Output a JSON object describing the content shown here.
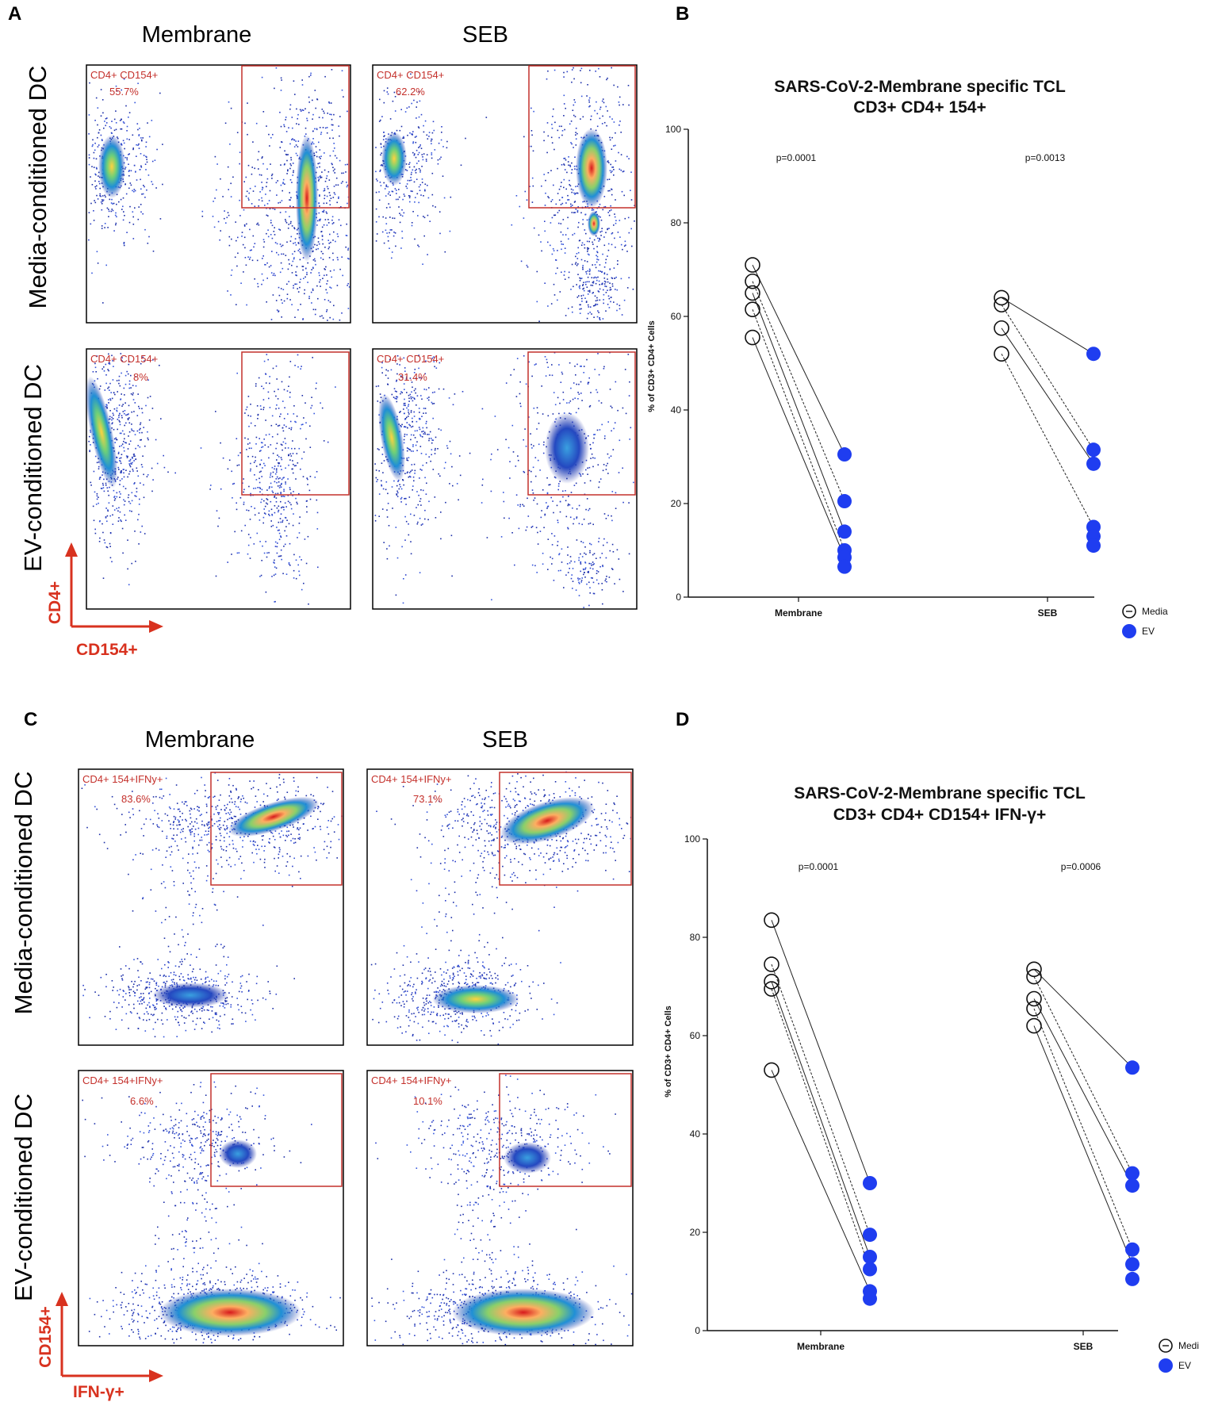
{
  "panels": [
    {
      "label": "A",
      "col_titles": [
        "Membrane",
        "SEB"
      ],
      "row_titles": [
        "Media-conditioned DC",
        "EV-conditioned DC"
      ],
      "y_marker": "CD4+",
      "x_marker": "CD154+",
      "gates": [
        {
          "name": "CD4+ CD154+",
          "value": "55.7%"
        },
        {
          "name": "CD4+ CD154+",
          "value": "62.2%"
        },
        {
          "name": "CD4+ CD154+",
          "value": "8%"
        },
        {
          "name": "CD4+ CD154+",
          "value": "31.4%"
        }
      ]
    },
    {
      "label": "C",
      "col_titles": [
        "Membrane",
        "SEB"
      ],
      "row_titles": [
        "Media-conditioned DC",
        "EV-conditioned DC"
      ],
      "y_marker": "CD154+",
      "x_marker": "IFN-γ+",
      "gates": [
        {
          "name": "CD4+ 154+IFNy+",
          "value": "83.6%"
        },
        {
          "name": "CD4+ 154+IFNy+",
          "value": "73.1%"
        },
        {
          "name": "CD4+ 154+IFNy+",
          "value": "6.6%"
        },
        {
          "name": "CD4+ 154+IFNy+",
          "value": "10.1%"
        }
      ]
    }
  ],
  "chart_data": [
    {
      "panel": "B",
      "type": "scatter",
      "title": "SARS-CoV-2-Membrane specific TCL",
      "subtitle": "CD3+ CD4+ 154+",
      "ylabel": "% of CD3+ CD4+ Cells",
      "ylim": [
        0,
        100
      ],
      "yticks": [
        0,
        20,
        40,
        60,
        80,
        100
      ],
      "categories": [
        "Membrane",
        "SEB"
      ],
      "pvalues": [
        "p=0.0001",
        "p=0.0013"
      ],
      "legend": [
        "Media",
        "EV"
      ],
      "colors": {
        "ev": "#1f3df0",
        "media": "#111111"
      },
      "pairs": [
        {
          "category": "Membrane",
          "media": [
            71,
            67.5,
            65,
            61.5,
            55.5
          ],
          "ev": [
            30.5,
            20.5,
            14,
            10,
            8.5,
            6.5
          ]
        },
        {
          "category": "SEB",
          "media": [
            64,
            62.5,
            57.5,
            52
          ],
          "ev": [
            52,
            31.5,
            28.5,
            15,
            13,
            11
          ]
        }
      ]
    },
    {
      "panel": "D",
      "type": "scatter",
      "title": "SARS-CoV-2-Membrane specific TCL",
      "subtitle": "CD3+ CD4+ CD154+ IFN-γ+",
      "ylabel": "% of CD3+ CD4+ Cells",
      "ylim": [
        0,
        100
      ],
      "yticks": [
        0,
        20,
        40,
        60,
        80,
        100
      ],
      "categories": [
        "Membrane",
        "SEB"
      ],
      "pvalues": [
        "p=0.0001",
        "p=0.0006"
      ],
      "legend": [
        "Medi",
        "EV"
      ],
      "colors": {
        "ev": "#1f3df0",
        "media": "#111111"
      },
      "pairs": [
        {
          "category": "Membrane",
          "media": [
            83.5,
            74.5,
            71,
            69.5,
            53
          ],
          "ev": [
            30,
            19.5,
            15,
            12.5,
            8,
            6.5
          ]
        },
        {
          "category": "SEB",
          "media": [
            73.5,
            72,
            67.5,
            65.5,
            62
          ],
          "ev": [
            53.5,
            32,
            29.5,
            16.5,
            13.5,
            10.5
          ]
        }
      ]
    }
  ]
}
